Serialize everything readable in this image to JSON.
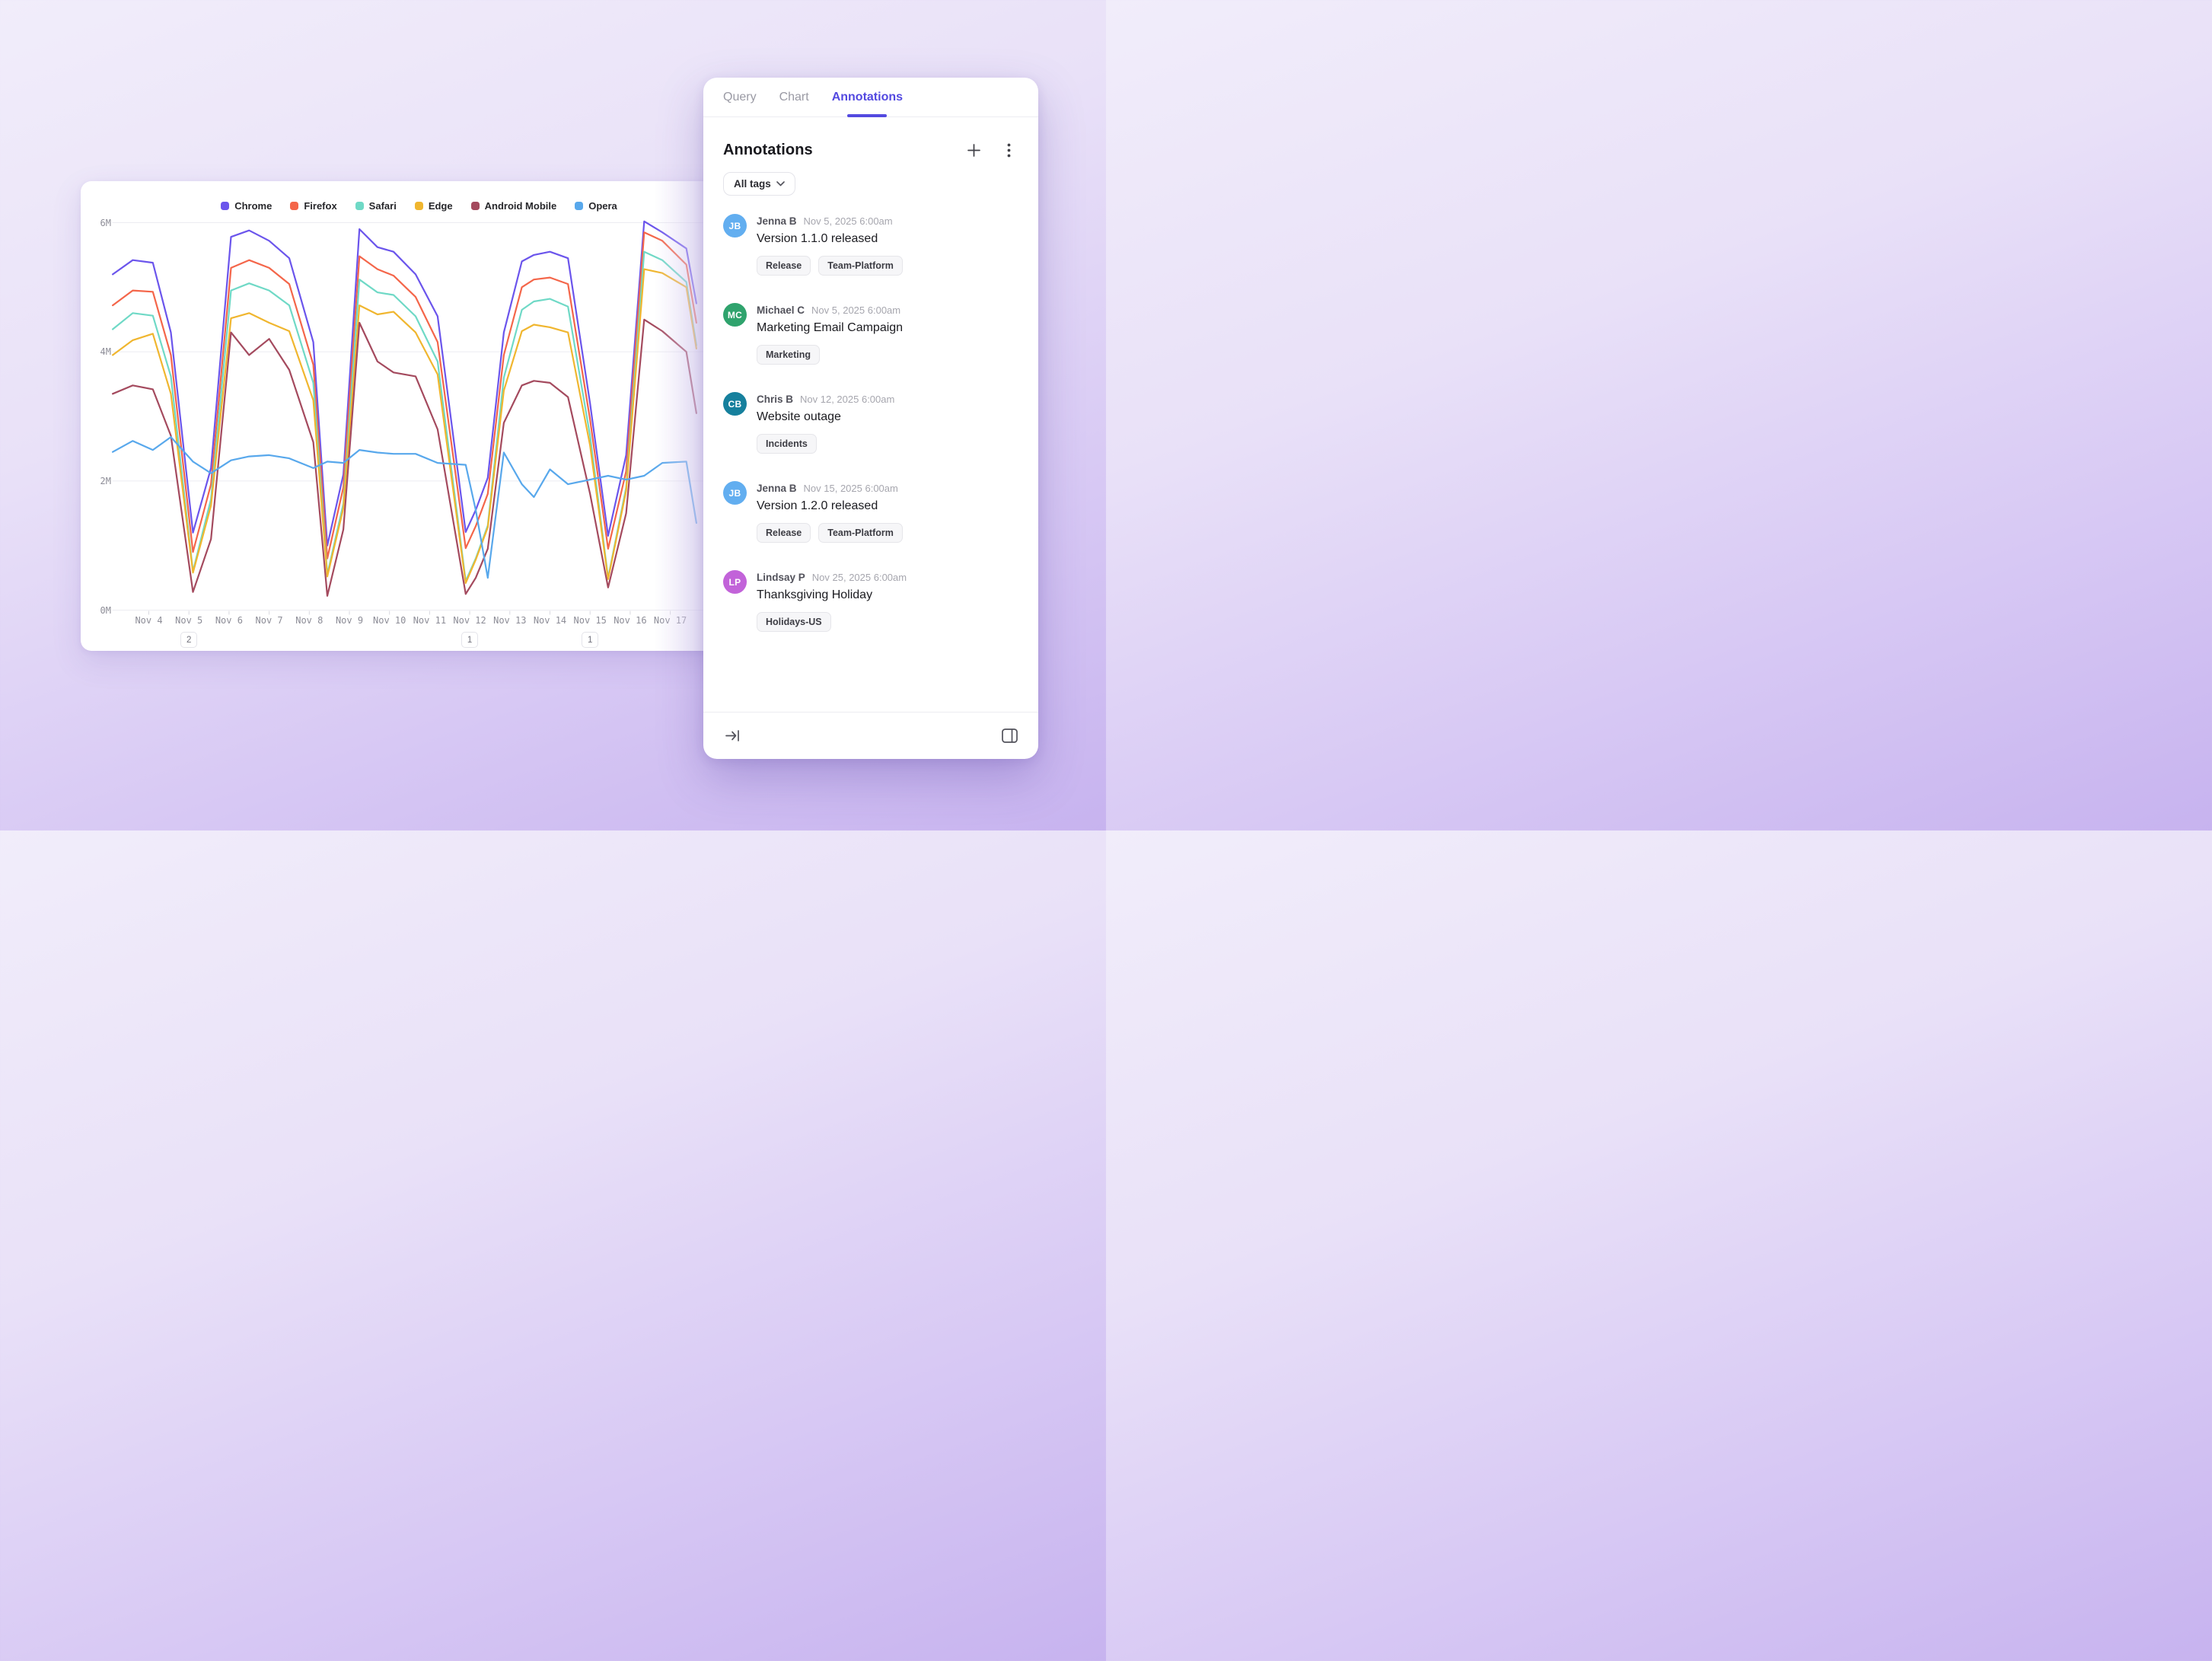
{
  "accent_color": "#5349e0",
  "chart_data": {
    "type": "line",
    "title": "",
    "xlabel": "",
    "ylabel": "",
    "y_unit": "millions",
    "ylim": [
      0,
      6
    ],
    "grid": true,
    "legend_position": "top",
    "y_ticks": [
      {
        "label": "6M",
        "value": 6
      },
      {
        "label": "4M",
        "value": 4
      },
      {
        "label": "2M",
        "value": 2
      },
      {
        "label": "0M",
        "value": 0
      }
    ],
    "x_labels": [
      "Nov 4",
      "Nov 5",
      "Nov 6",
      "Nov 7",
      "Nov 8",
      "Nov 9",
      "Nov 10",
      "Nov 11",
      "Nov 12",
      "Nov 13",
      "Nov 14",
      "Nov 15",
      "Nov 16",
      "Nov 17"
    ],
    "x_badges": [
      {
        "label": "Nov 5",
        "count": "2"
      },
      {
        "label": "Nov 12",
        "count": "1"
      },
      {
        "label": "Nov 15",
        "count": "1"
      }
    ],
    "x": [
      3.1,
      3.6,
      4.1,
      4.55,
      5.1,
      5.55,
      6.05,
      6.5,
      7.0,
      7.5,
      8.1,
      8.45,
      8.85,
      9.25,
      9.7,
      10.1,
      10.65,
      11.2,
      11.9,
      12.15,
      12.45,
      12.85,
      13.3,
      13.6,
      14.0,
      14.45,
      15.0,
      15.45,
      15.9,
      16.35,
      16.8,
      17.4,
      17.65
    ],
    "series": [
      {
        "name": "Chrome",
        "color": "#6b55ec",
        "values": [
          5.2,
          5.42,
          5.38,
          4.3,
          1.2,
          2.2,
          5.78,
          5.88,
          5.72,
          5.45,
          4.15,
          1.0,
          2.1,
          5.9,
          5.62,
          5.55,
          5.2,
          4.55,
          1.21,
          1.55,
          2.05,
          4.3,
          5.4,
          5.5,
          5.55,
          5.45,
          3.2,
          1.15,
          2.4,
          6.02,
          5.85,
          5.6,
          4.75
        ]
      },
      {
        "name": "Firefox",
        "color": "#f4664a",
        "values": [
          4.72,
          4.95,
          4.93,
          3.95,
          0.9,
          1.95,
          5.3,
          5.42,
          5.3,
          5.05,
          3.8,
          0.8,
          1.9,
          5.48,
          5.28,
          5.18,
          4.85,
          4.15,
          0.96,
          1.3,
          1.8,
          3.95,
          5.0,
          5.12,
          5.15,
          5.05,
          2.95,
          0.95,
          2.15,
          5.85,
          5.72,
          5.35,
          4.45
        ]
      },
      {
        "name": "Safari",
        "color": "#6fd9c6",
        "values": [
          4.35,
          4.6,
          4.56,
          3.62,
          0.6,
          1.72,
          4.95,
          5.06,
          4.95,
          4.72,
          3.52,
          0.55,
          1.65,
          5.12,
          4.92,
          4.88,
          4.55,
          3.85,
          0.45,
          0.8,
          1.31,
          3.6,
          4.65,
          4.78,
          4.82,
          4.7,
          2.7,
          0.5,
          1.9,
          5.55,
          5.42,
          5.08,
          4.1
        ]
      },
      {
        "name": "Edge",
        "color": "#f0b62f",
        "values": [
          3.95,
          4.18,
          4.28,
          3.35,
          0.58,
          1.62,
          4.52,
          4.6,
          4.45,
          4.32,
          3.25,
          0.52,
          1.58,
          4.72,
          4.58,
          4.62,
          4.3,
          3.65,
          0.42,
          0.78,
          1.28,
          3.4,
          4.32,
          4.42,
          4.38,
          4.3,
          2.55,
          0.48,
          1.85,
          5.28,
          5.22,
          5.0,
          4.05
        ]
      },
      {
        "name": "Android Mobile",
        "color": "#a44a5e",
        "values": [
          3.35,
          3.48,
          3.42,
          2.7,
          0.28,
          1.1,
          4.3,
          3.95,
          4.2,
          3.72,
          2.6,
          0.22,
          1.25,
          4.45,
          3.85,
          3.68,
          3.62,
          2.8,
          0.25,
          0.5,
          0.95,
          2.9,
          3.48,
          3.55,
          3.52,
          3.3,
          1.8,
          0.35,
          1.5,
          4.5,
          4.32,
          4.0,
          3.05
        ]
      },
      {
        "name": "Opera",
        "color": "#58a8ec",
        "values": [
          2.45,
          2.62,
          2.48,
          2.68,
          2.3,
          2.12,
          2.32,
          2.38,
          2.4,
          2.35,
          2.2,
          2.3,
          2.28,
          2.48,
          2.44,
          2.42,
          2.42,
          2.28,
          2.25,
          1.55,
          0.5,
          2.44,
          1.95,
          1.75,
          2.18,
          1.95,
          2.02,
          2.08,
          2.02,
          2.08,
          2.28,
          2.3,
          1.35
        ]
      }
    ]
  },
  "panel": {
    "tabs": [
      {
        "label": "Query",
        "active": false
      },
      {
        "label": "Chart",
        "active": false
      },
      {
        "label": "Annotations",
        "active": true
      }
    ],
    "header": {
      "title": "Annotations"
    },
    "filter": {
      "label": "All tags"
    },
    "annotations": [
      {
        "initials": "JB",
        "avatar_color": "#62aef0",
        "author": "Jenna B",
        "timestamp": "Nov 5, 2025 6:00am",
        "title": "Version 1.1.0 released",
        "tags": [
          "Release",
          "Team-Platform"
        ]
      },
      {
        "initials": "MC",
        "avatar_color": "#2fa36d",
        "author": "Michael C",
        "timestamp": "Nov 5, 2025 6:00am",
        "title": "Marketing Email Campaign",
        "tags": [
          "Marketing"
        ]
      },
      {
        "initials": "CB",
        "avatar_color": "#16809d",
        "author": "Chris B",
        "timestamp": "Nov 12, 2025 6:00am",
        "title": "Website outage",
        "tags": [
          "Incidents"
        ]
      },
      {
        "initials": "JB",
        "avatar_color": "#62aef0",
        "author": "Jenna B",
        "timestamp": "Nov 15, 2025 6:00am",
        "title": "Version 1.2.0 released",
        "tags": [
          "Release",
          "Team-Platform"
        ]
      },
      {
        "initials": "LP",
        "avatar_color": "#c263d9",
        "author": "Lindsay P",
        "timestamp": "Nov 25, 2025 6:00am",
        "title": "Thanksgiving Holiday",
        "tags": [
          "Holidays-US"
        ]
      }
    ]
  }
}
